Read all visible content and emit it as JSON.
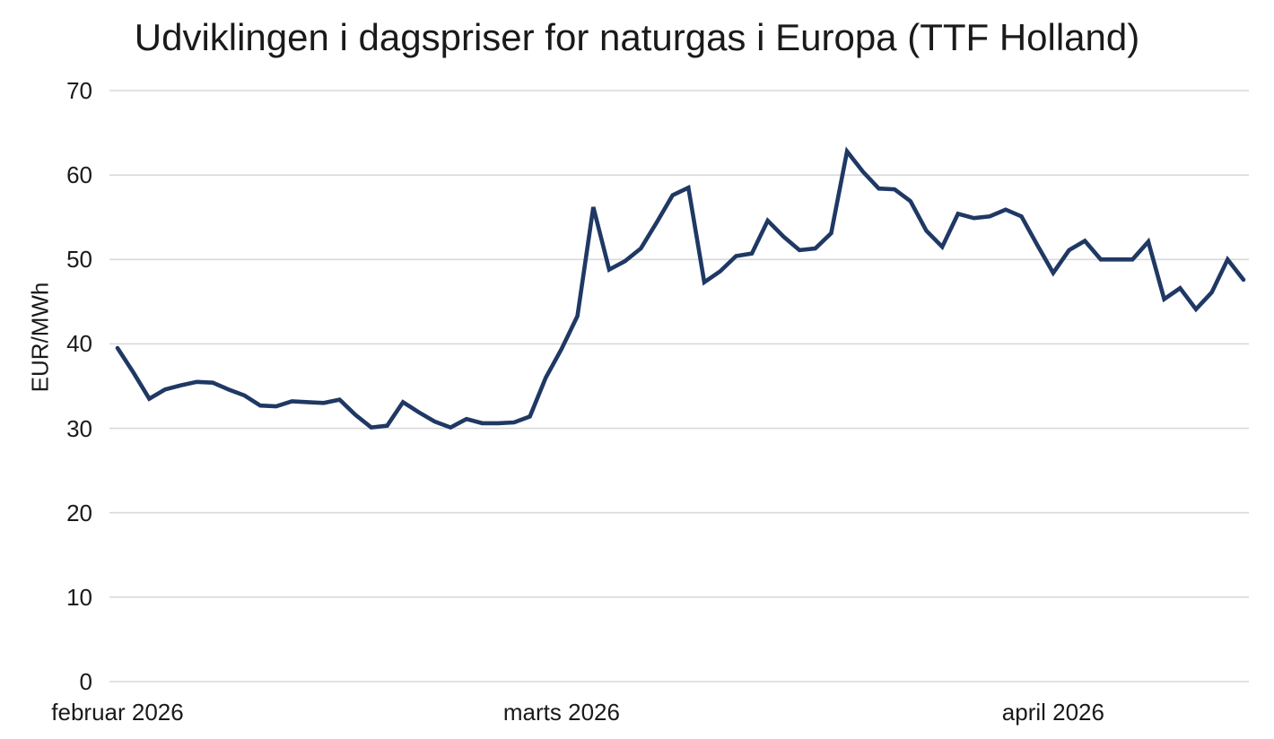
{
  "title": "Udviklingen i dagspriser for naturgas i Europa (TTF Holland)",
  "colors": {
    "line": "#1f3864",
    "grid": "#d9d9d9",
    "text": "#1a1a1a",
    "background": "#ffffff"
  },
  "chart_data": {
    "type": "line",
    "title": "Udviklingen i dagspriser for naturgas i Europa (TTF Holland)",
    "xlabel": "",
    "ylabel": "EUR/MWh",
    "ylim": [
      0,
      70
    ],
    "yticks": [
      0,
      10,
      20,
      30,
      40,
      50,
      60,
      70
    ],
    "grid": "horizontal-only",
    "legend": "none",
    "x_unit": "day",
    "start_date": "2026-02-01",
    "end_date": "2026-04-13",
    "x_tick_labels": [
      {
        "label": "februar 2026",
        "day_index": 0
      },
      {
        "label": "marts 2026",
        "day_index": 28
      },
      {
        "label": "april 2026",
        "day_index": 59
      }
    ],
    "series": [
      {
        "values": [
          39.5,
          36.6,
          33.5,
          34.6,
          35.1,
          35.5,
          35.4,
          34.6,
          33.9,
          32.7,
          32.6,
          33.2,
          33.1,
          33.0,
          33.4,
          31.6,
          30.1,
          30.3,
          33.1,
          31.9,
          30.8,
          30.1,
          31.1,
          30.6,
          30.6,
          30.7,
          31.4,
          36.0,
          39.4,
          43.3,
          56.2,
          48.8,
          49.8,
          51.3,
          54.4,
          57.6,
          58.5,
          47.3,
          48.6,
          50.4,
          50.7,
          54.6,
          52.7,
          51.1,
          51.3,
          53.1,
          62.8,
          60.4,
          58.4,
          58.3,
          56.9,
          53.4,
          51.5,
          55.4,
          54.9,
          55.1,
          55.9,
          55.1,
          51.7,
          48.4,
          51.1,
          52.2,
          50.0,
          50.0,
          50.0,
          52.1,
          45.3,
          46.6,
          44.1,
          46.1,
          50.0,
          47.6
        ]
      }
    ]
  }
}
